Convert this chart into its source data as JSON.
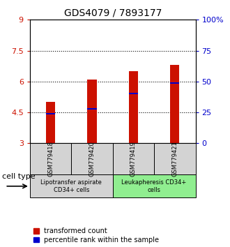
{
  "title": "GDS4079 / 7893177",
  "samples": [
    "GSM779418",
    "GSM779420",
    "GSM779419",
    "GSM779421"
  ],
  "bar_bottom": 3.0,
  "bar_tops": [
    5.0,
    6.1,
    6.5,
    6.8
  ],
  "percentile_values": [
    4.42,
    4.67,
    5.42,
    5.92
  ],
  "ylim_left": [
    3,
    9
  ],
  "ylim_right": [
    0,
    100
  ],
  "yticks_left": [
    3,
    4.5,
    6,
    7.5,
    9
  ],
  "ytick_labels_left": [
    "3",
    "4.5",
    "6",
    "7.5",
    "9"
  ],
  "yticks_right": [
    0,
    25,
    50,
    75,
    100
  ],
  "ytick_labels_right": [
    "0",
    "25",
    "50",
    "75",
    "100%"
  ],
  "bar_color": "#cc1100",
  "percentile_color": "#0000cc",
  "bar_width": 0.22,
  "groups": [
    {
      "label": "Lipotransfer aspirate\nCD34+ cells",
      "indices": [
        0,
        1
      ],
      "color": "#d3d3d3"
    },
    {
      "label": "Leukapheresis CD34+\ncells",
      "indices": [
        2,
        3
      ],
      "color": "#90ee90"
    }
  ],
  "cell_type_label": "cell type",
  "legend_red_label": "transformed count",
  "legend_blue_label": "percentile rank within the sample",
  "title_fontsize": 10,
  "tick_fontsize": 8,
  "label_fontsize": 8,
  "sample_label_fontsize": 6,
  "group_label_fontsize": 6,
  "legend_fontsize": 7
}
